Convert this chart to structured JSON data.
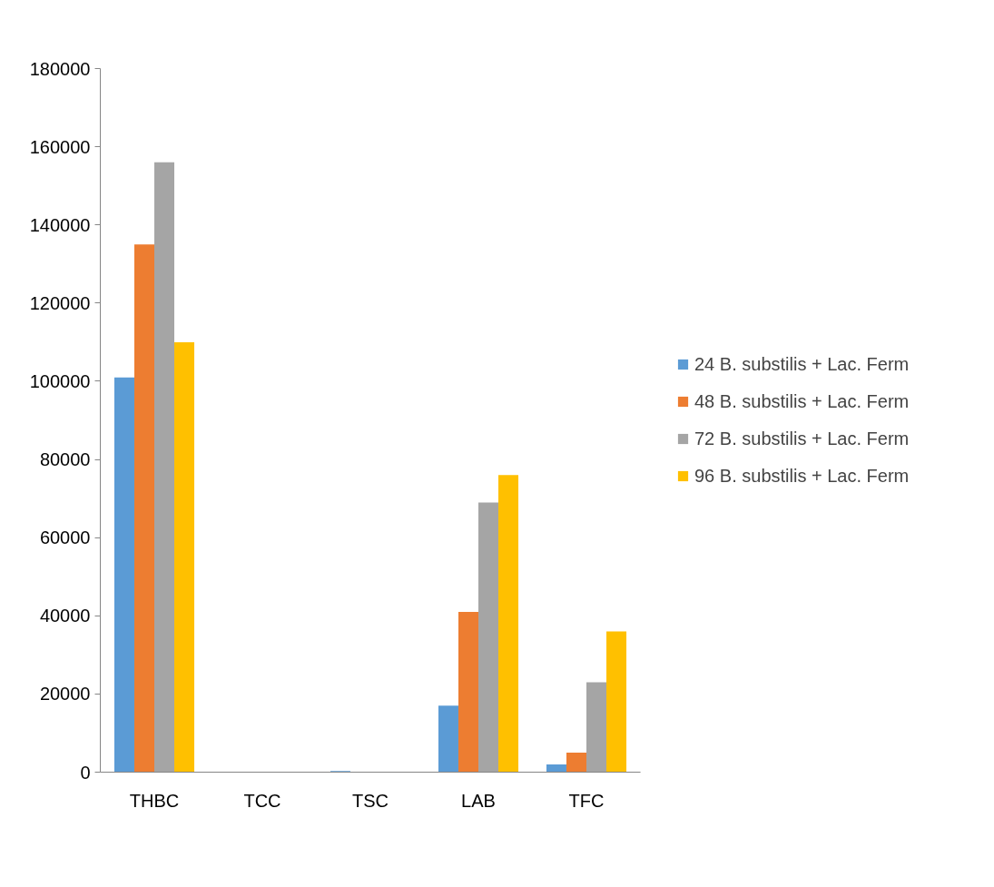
{
  "chart_data": {
    "type": "bar",
    "categories": [
      "THBC",
      "TCC",
      "TSC",
      "LAB",
      "TFC"
    ],
    "series": [
      {
        "name": "24 B. substilis + Lac. Ferm",
        "color": "#5b9bd5",
        "values": [
          101000,
          0,
          300,
          17000,
          2000
        ]
      },
      {
        "name": "48 B. substilis + Lac. Ferm",
        "color": "#ed7d31",
        "values": [
          135000,
          0,
          0,
          41000,
          5000
        ]
      },
      {
        "name": "72 B. substilis + Lac. Ferm",
        "color": "#a5a5a5",
        "values": [
          156000,
          0,
          0,
          69000,
          23000
        ]
      },
      {
        "name": "96 B. substilis + Lac. Ferm",
        "color": "#ffc000",
        "values": [
          110000,
          0,
          0,
          76000,
          36000
        ]
      }
    ],
    "ylim": [
      0,
      180000
    ],
    "yticks": [
      0,
      20000,
      40000,
      60000,
      80000,
      100000,
      120000,
      140000,
      160000,
      180000
    ],
    "grid": false,
    "legend": "right"
  }
}
